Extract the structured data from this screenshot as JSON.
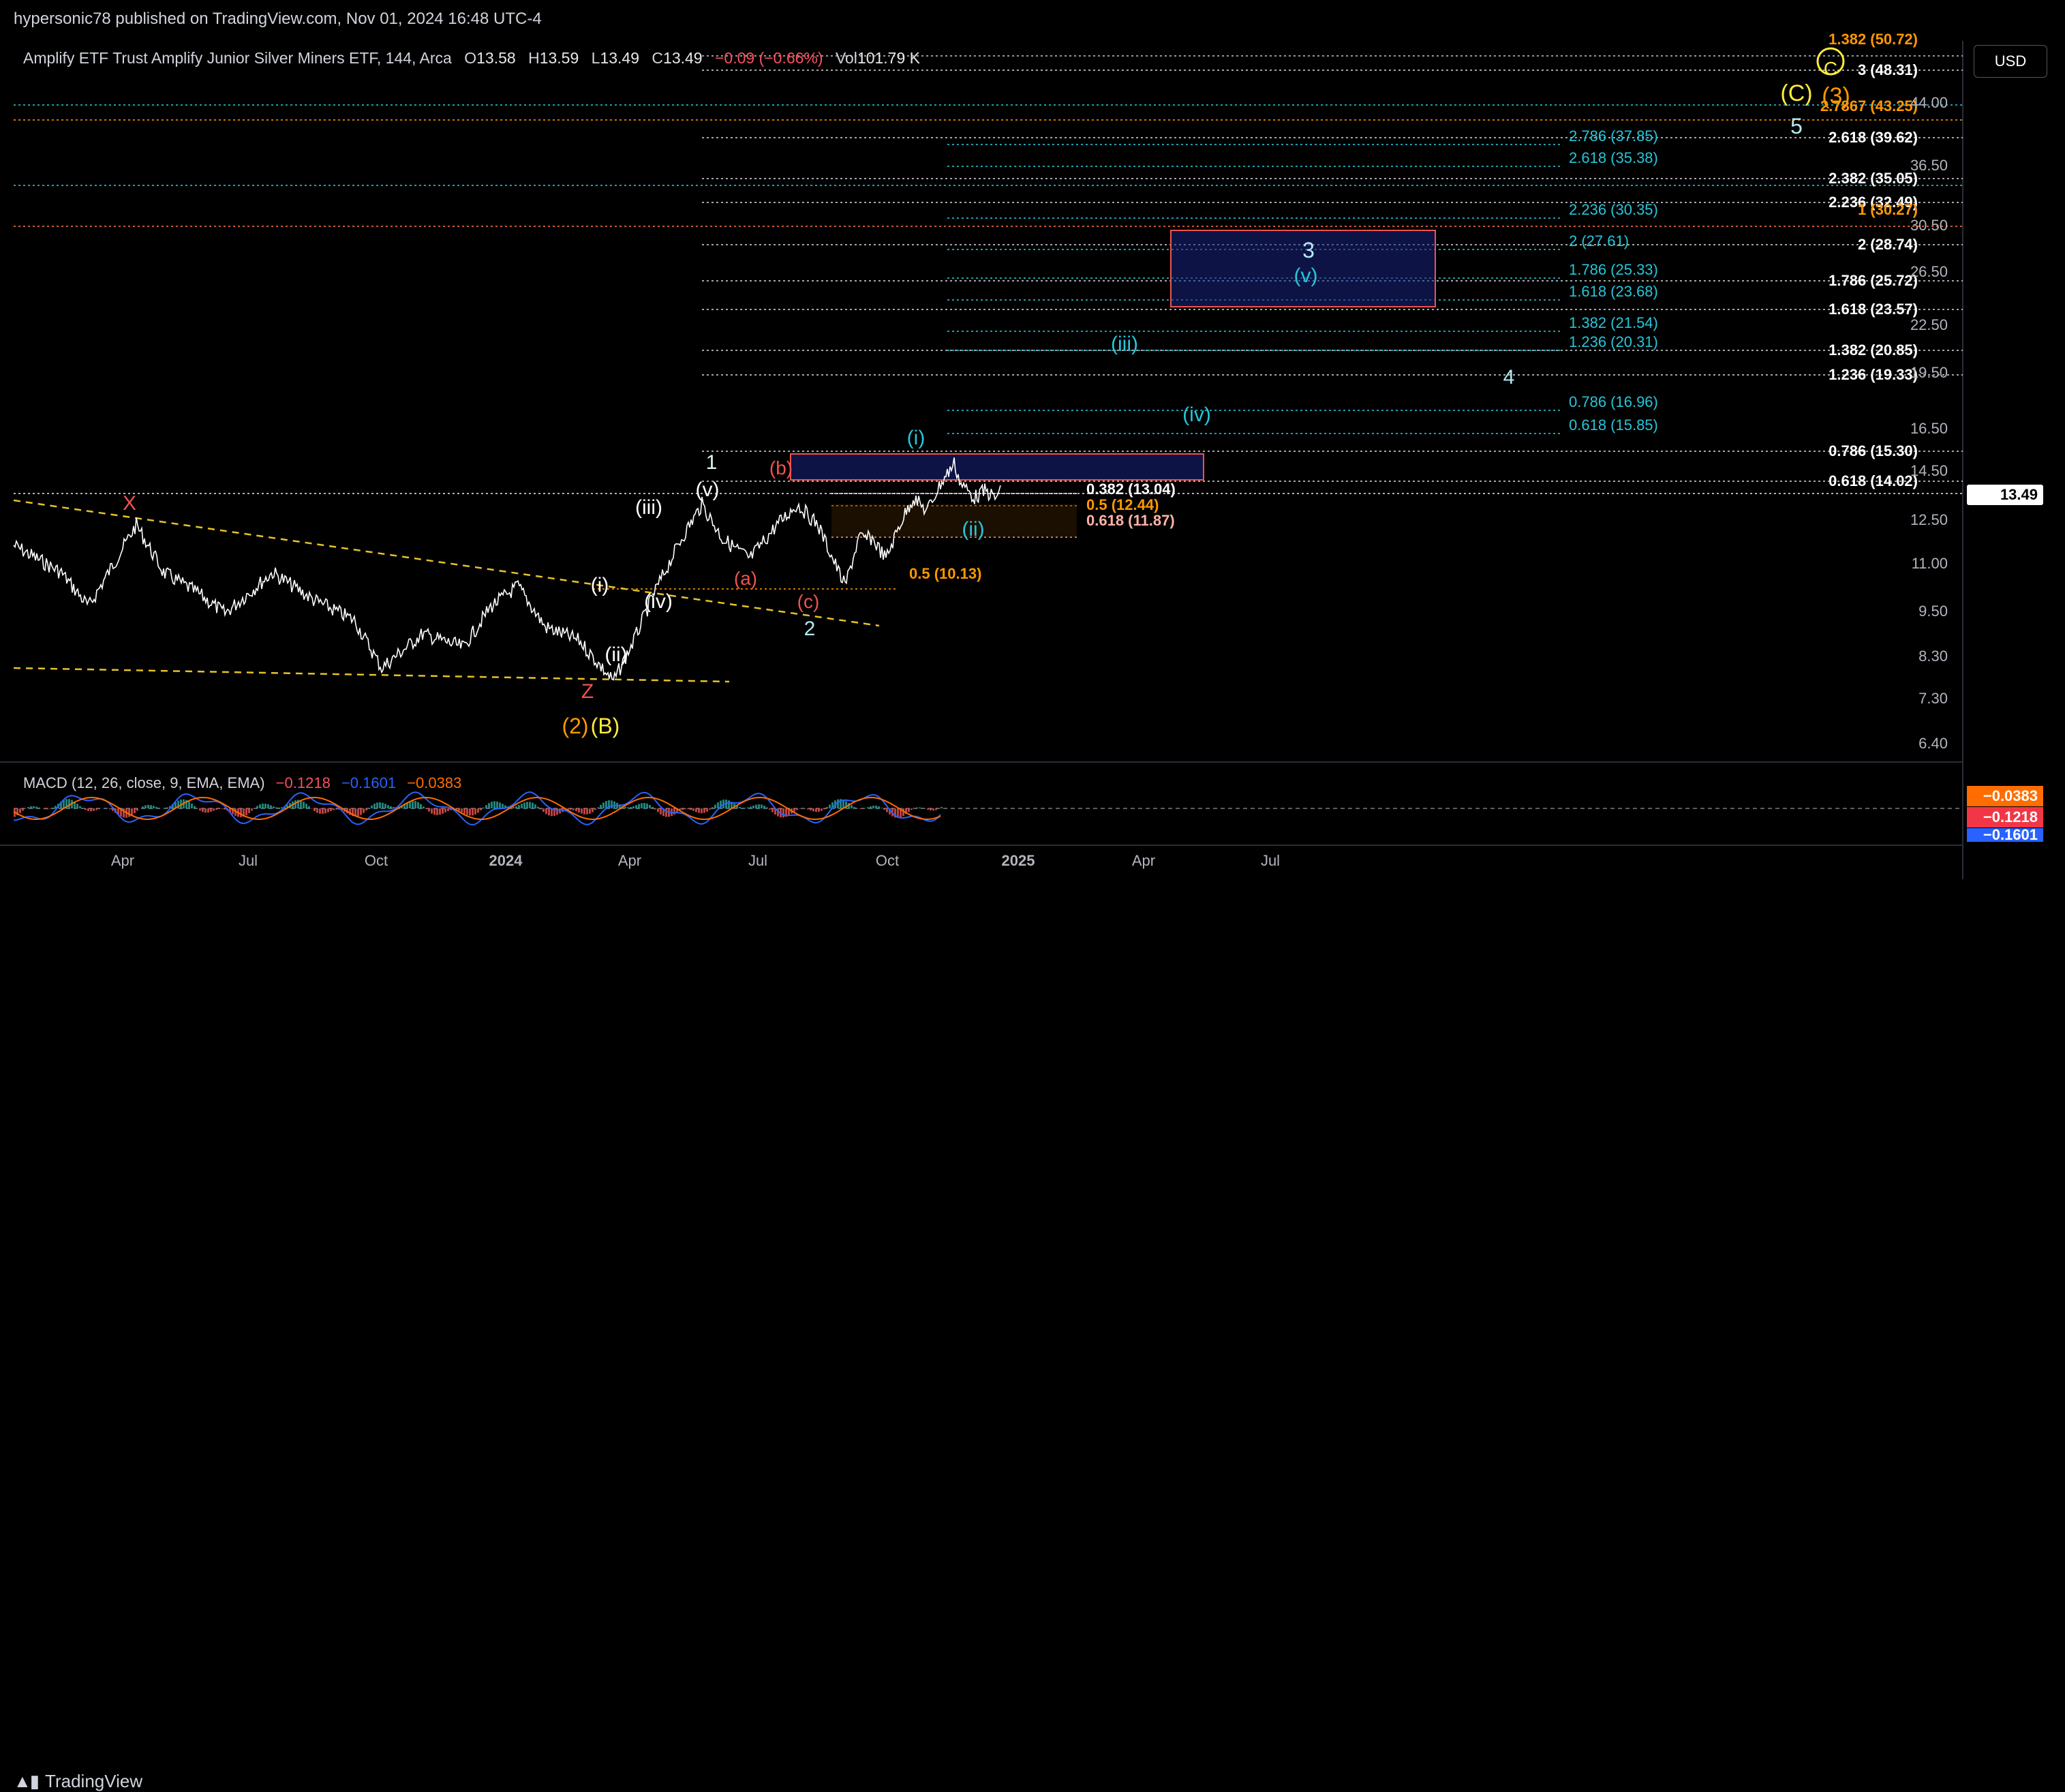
{
  "publisher_line": "hypersonic78 published on TradingView.com, Nov 01, 2024 16:48 UTC-4",
  "legend": {
    "symbol": "Amplify ETF Trust Amplify Junior Silver Miners ETF, 144, Arca",
    "o_label": "O",
    "o": "13.58",
    "h_label": "H",
    "h": "13.59",
    "l_label": "L",
    "l": "13.49",
    "c_label": "C",
    "c": "13.49",
    "change": "−0.09 (−0.66%)",
    "vol_label": "Vol",
    "vol": "101.79 K"
  },
  "macd_legend": {
    "name": "MACD (12, 26, close, 9, EMA, EMA)",
    "v1": "−0.1218",
    "v2": "−0.1601",
    "v3": "−0.0383"
  },
  "currency_button": "USD",
  "footer_brand": "TradingView",
  "colors": {
    "background": "#000000",
    "price_line": "#ffffff",
    "trendline": "#e6c229",
    "cyan": "#26c6da",
    "orange": "#ff9800",
    "red": "#ef5350",
    "white": "#ffffff",
    "macd_blue": "#2962ff",
    "macd_orange": "#ff6d00"
  },
  "price_axis": [
    "44.00",
    "36.50",
    "30.50",
    "26.50",
    "22.50",
    "19.50",
    "16.50",
    "14.50",
    "12.50",
    "11.00",
    "9.50",
    "8.30",
    "7.30",
    "6.40"
  ],
  "current_price_tag": "13.49",
  "macd_tags": [
    "−0.0383",
    "−0.1218",
    "−0.1601"
  ],
  "time_axis": [
    "Apr",
    "Jul",
    "Oct",
    "2024",
    "Apr",
    "Jul",
    "Oct",
    "2025",
    "Apr",
    "Jul"
  ],
  "fib_white": [
    {
      "label": "1.382 (50.72)",
      "color": "#ff9800"
    },
    {
      "label": "3 (48.31)"
    },
    {
      "label": "2.7867 (43.25)",
      "color": "#ff9800"
    },
    {
      "label": "2.618 (39.62)"
    },
    {
      "label": "2.382 (35.05)"
    },
    {
      "label": "2.236 (32.49)"
    },
    {
      "label": "1 (30.27)",
      "color": "#ff9800"
    },
    {
      "label": "2 (28.74)"
    },
    {
      "label": "1.786 (25.72)"
    },
    {
      "label": "1.618 (23.57)"
    },
    {
      "label": "1.382 (20.85)"
    },
    {
      "label": "1.236 (19.33)"
    },
    {
      "label": "0.786 (15.30)"
    },
    {
      "label": "0.618 (14.02)"
    }
  ],
  "fib_cyan": [
    "2.786 (37.85)",
    "2.618 (35.38)",
    "2.236 (30.35)",
    "2 (27.61)",
    "1.786 (25.33)",
    "1.618 (23.68)",
    "1.382 (21.54)",
    "1.236 (20.31)",
    "0.786 (16.96)",
    "0.618 (15.85)"
  ],
  "fib_near": [
    {
      "label": "0.382 (13.04)",
      "color": "#ffffff"
    },
    {
      "label": "0.5 (12.44)",
      "color": "#ff9800"
    },
    {
      "label": "0.618 (11.87)",
      "color": "#ffb3a7"
    },
    {
      "label": "0.5 (10.13)",
      "color": "#ff9800"
    }
  ],
  "wave_labels": [
    {
      "text": "X",
      "color": "#ef5350"
    },
    {
      "text": "Z",
      "color": "#ef5350"
    },
    {
      "text": "(2)",
      "color": "#ff9800"
    },
    {
      "text": "(B)",
      "color": "#ffeb3b"
    },
    {
      "text": "(i)",
      "color": "#ffffff"
    },
    {
      "text": "(ii)",
      "color": "#ffffff"
    },
    {
      "text": "(iii)",
      "color": "#ffffff"
    },
    {
      "text": "(iv)",
      "color": "#ffffff"
    },
    {
      "text": "(v)",
      "color": "#ffffff"
    },
    {
      "text": "1",
      "color": "#e0f2f1"
    },
    {
      "text": "(a)",
      "color": "#ef5350"
    },
    {
      "text": "(b)",
      "color": "#ef5350"
    },
    {
      "text": "(c)",
      "color": "#ef5350"
    },
    {
      "text": "2",
      "color": "#b2ebf2"
    },
    {
      "text": "(i)",
      "color": "#26c6da"
    },
    {
      "text": "(ii)",
      "color": "#26c6da"
    },
    {
      "text": "(iii)",
      "color": "#26c6da"
    },
    {
      "text": "(iv)",
      "color": "#26c6da"
    },
    {
      "text": "(v)",
      "color": "#26c6da"
    },
    {
      "text": "3",
      "color": "#b2ebf2"
    },
    {
      "text": "4",
      "color": "#b2ebf2"
    },
    {
      "text": "5",
      "color": "#b2ebf2"
    },
    {
      "text": "(C)",
      "color": "#ffeb3b"
    },
    {
      "text": "(3)",
      "color": "#ff9800"
    },
    {
      "text": "C",
      "color": "#ffeb3b"
    }
  ]
}
